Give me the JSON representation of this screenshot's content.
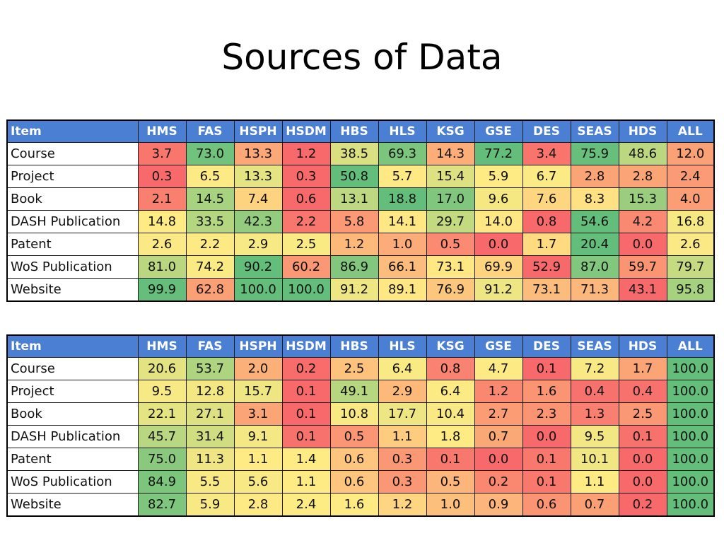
{
  "title": "Sources of Data",
  "columns": [
    "Item",
    "HMS",
    "FAS",
    "HSPH",
    "HSDM",
    "HBS",
    "HLS",
    "KSG",
    "GSE",
    "DES",
    "SEAS",
    "HDS",
    "ALL"
  ],
  "tables": [
    {
      "rows": [
        {
          "label": "Course",
          "values": [
            "3.7",
            "73.0",
            "13.3",
            "1.2",
            "38.5",
            "69.3",
            "14.3",
            "77.2",
            "3.4",
            "75.9",
            "48.6",
            "12.0"
          ]
        },
        {
          "label": "Project",
          "values": [
            "0.3",
            "6.5",
            "13.3",
            "0.3",
            "50.8",
            "5.7",
            "15.4",
            "5.9",
            "6.7",
            "2.8",
            "2.8",
            "2.4"
          ]
        },
        {
          "label": "Book",
          "values": [
            "2.1",
            "14.5",
            "7.4",
            "0.6",
            "13.1",
            "18.8",
            "17.0",
            "9.6",
            "7.6",
            "8.3",
            "15.3",
            "4.0"
          ]
        },
        {
          "label": "DASH Publication",
          "values": [
            "14.8",
            "33.5",
            "42.3",
            "2.2",
            "5.8",
            "14.1",
            "29.7",
            "14.0",
            "0.8",
            "54.6",
            "4.2",
            "16.8"
          ]
        },
        {
          "label": "Patent",
          "values": [
            "2.6",
            "2.2",
            "2.9",
            "2.5",
            "1.2",
            "1.0",
            "0.5",
            "0.0",
            "1.7",
            "20.4",
            "0.0",
            "2.6"
          ]
        },
        {
          "label": "WoS Publication",
          "values": [
            "81.0",
            "74.2",
            "90.2",
            "60.2",
            "86.9",
            "66.1",
            "73.1",
            "69.9",
            "52.9",
            "87.0",
            "59.7",
            "79.7"
          ]
        },
        {
          "label": "Website",
          "values": [
            "99.9",
            "62.8",
            "100.0",
            "100.0",
            "91.2",
            "89.1",
            "76.9",
            "91.2",
            "73.1",
            "71.3",
            "43.1",
            "95.8"
          ]
        }
      ]
    },
    {
      "rows": [
        {
          "label": "Course",
          "values": [
            "20.6",
            "53.7",
            "2.0",
            "0.2",
            "2.5",
            "6.4",
            "0.8",
            "4.7",
            "0.1",
            "7.2",
            "1.7",
            "100.0"
          ]
        },
        {
          "label": "Project",
          "values": [
            "9.5",
            "12.8",
            "15.7",
            "0.1",
            "49.1",
            "2.9",
            "6.4",
            "1.2",
            "1.6",
            "0.4",
            "0.4",
            "100.0"
          ]
        },
        {
          "label": "Book",
          "values": [
            "22.1",
            "27.1",
            "3.1",
            "0.1",
            "10.8",
            "17.7",
            "10.4",
            "2.7",
            "2.3",
            "1.3",
            "2.5",
            "100.0"
          ]
        },
        {
          "label": "DASH Publication",
          "values": [
            "45.7",
            "31.4",
            "9.1",
            "0.1",
            "0.5",
            "1.1",
            "1.8",
            "0.7",
            "0.0",
            "9.5",
            "0.1",
            "100.0"
          ]
        },
        {
          "label": "Patent",
          "values": [
            "75.0",
            "11.3",
            "1.1",
            "1.4",
            "0.6",
            "0.3",
            "0.1",
            "0.0",
            "0.1",
            "10.1",
            "0.0",
            "100.0"
          ]
        },
        {
          "label": "WoS Publication",
          "values": [
            "84.9",
            "5.5",
            "5.6",
            "1.1",
            "0.6",
            "0.3",
            "0.5",
            "0.2",
            "0.1",
            "1.1",
            "0.0",
            "100.0"
          ]
        },
        {
          "label": "Website",
          "values": [
            "82.7",
            "5.9",
            "2.8",
            "2.4",
            "1.6",
            "1.2",
            "1.0",
            "0.9",
            "0.6",
            "0.7",
            "0.2",
            "100.0"
          ]
        }
      ]
    }
  ],
  "colors": {
    "header_bg": "#4a7fd4",
    "heat_low": "#f8696b",
    "heat_mid": "#ffeb84",
    "heat_high": "#63be7b"
  }
}
